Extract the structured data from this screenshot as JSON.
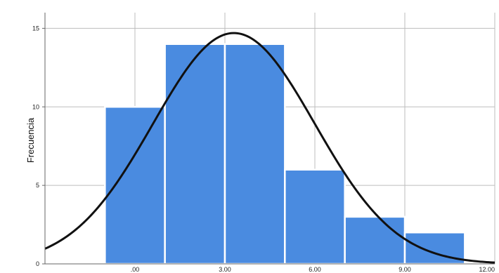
{
  "chart_data": {
    "type": "bar",
    "title": "",
    "xlabel": "",
    "ylabel": "Frecuencia",
    "xlim": [
      -3.0,
      12.0
    ],
    "ylim": [
      0,
      16
    ],
    "x_ticks": [
      0,
      3,
      6,
      9,
      12
    ],
    "x_tick_labels": [
      ".00",
      "3.00",
      "6.00",
      "9.00",
      "12.00"
    ],
    "y_ticks": [
      0,
      5,
      10,
      15
    ],
    "y_tick_labels": [
      "0",
      "5",
      "10",
      "15"
    ],
    "grid": true,
    "bins": [
      {
        "start": -1.0,
        "end": 1.0,
        "count": 10
      },
      {
        "start": 1.0,
        "end": 3.0,
        "count": 14
      },
      {
        "start": 3.0,
        "end": 5.0,
        "count": 14
      },
      {
        "start": 5.0,
        "end": 7.0,
        "count": 6
      },
      {
        "start": 7.0,
        "end": 9.0,
        "count": 3
      },
      {
        "start": 9.0,
        "end": 11.0,
        "count": 2
      }
    ],
    "normal_curve": {
      "mean": 3.3,
      "sd": 2.7,
      "peak": 14.7
    },
    "colors": {
      "bar": "#4a8be0",
      "bar_edge": "#ffffff",
      "curve": "#111111",
      "grid": "#bdbdbd",
      "axis": "#666666"
    }
  }
}
